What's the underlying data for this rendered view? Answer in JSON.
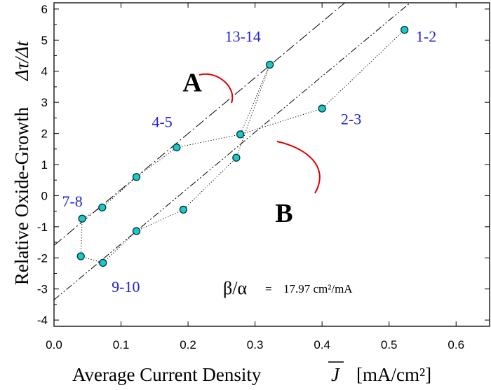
{
  "chart_data": {
    "type": "scatter",
    "xlabel_text": "Average Current Density",
    "xlabel_symbol": "J",
    "xlabel_units": "[mA/cm²]",
    "ylabel_text": "Relative Oxide-Growth",
    "ylabel_symbol": "Δτ/Δt",
    "xlim": [
      0.0,
      0.65
    ],
    "ylim": [
      -4.2,
      6.2
    ],
    "x_ticks": [
      0.0,
      0.1,
      0.2,
      0.3,
      0.4,
      0.5,
      0.6
    ],
    "x_tick_labels": [
      "0.0",
      "0.1",
      "0.2",
      "0.3",
      "0.4",
      "0.5",
      "0.6"
    ],
    "y_ticks": [
      -4,
      -3,
      -2,
      -1,
      0,
      1,
      2,
      3,
      4,
      5,
      6
    ],
    "y_tick_labels": [
      "-4",
      "-3",
      "-2",
      "-1",
      "0",
      "1",
      "2",
      "3",
      "4",
      "5",
      "6"
    ],
    "points": [
      {
        "x": 0.523,
        "y": 5.33
      },
      {
        "x": 0.4,
        "y": 2.8
      },
      {
        "x": 0.278,
        "y": 1.97
      },
      {
        "x": 0.183,
        "y": 1.55
      },
      {
        "x": 0.123,
        "y": 0.6
      },
      {
        "x": 0.072,
        "y": -0.38
      },
      {
        "x": 0.042,
        "y": -0.74
      },
      {
        "x": 0.04,
        "y": -1.95
      },
      {
        "x": 0.073,
        "y": -2.16
      },
      {
        "x": 0.123,
        "y": -1.14
      },
      {
        "x": 0.193,
        "y": -0.45
      },
      {
        "x": 0.272,
        "y": 1.22
      },
      {
        "x": 0.322,
        "y": 4.21
      }
    ],
    "dotted_path_order": [
      0,
      1,
      2,
      3,
      4,
      5,
      6,
      7,
      8,
      9,
      10,
      11,
      12,
      2
    ],
    "lines": [
      {
        "name": "A",
        "intercept": -1.6,
        "slope": 17.97,
        "style": "dash-dot"
      },
      {
        "name": "B",
        "intercept": -3.35,
        "slope": 17.97,
        "style": "dash-dot-dot"
      }
    ],
    "point_labels": [
      {
        "text": "1-2",
        "x": 0.54,
        "y": 4.95
      },
      {
        "text": "2-3",
        "x": 0.428,
        "y": 2.3
      },
      {
        "text": "13-14",
        "x": 0.255,
        "y": 4.95
      },
      {
        "text": "4-5",
        "x": 0.146,
        "y": 2.2
      },
      {
        "text": "7-8",
        "x": 0.012,
        "y": -0.35
      },
      {
        "text": "9-10",
        "x": 0.086,
        "y": -3.1
      }
    ],
    "line_labels": [
      {
        "text": "A",
        "x": 0.192,
        "y": 3.35
      },
      {
        "text": "B",
        "x": 0.33,
        "y": -0.85
      }
    ],
    "ratio_annotation": {
      "greek": "β/α",
      "equals": "=",
      "value": "17.97 cm²/mA"
    },
    "colors": {
      "marker_fill": "#1ec8c8",
      "marker_stroke": "#003333",
      "label_color": "#2323d0",
      "arrow_color": "#e00000",
      "axis_color": "#000000"
    }
  }
}
